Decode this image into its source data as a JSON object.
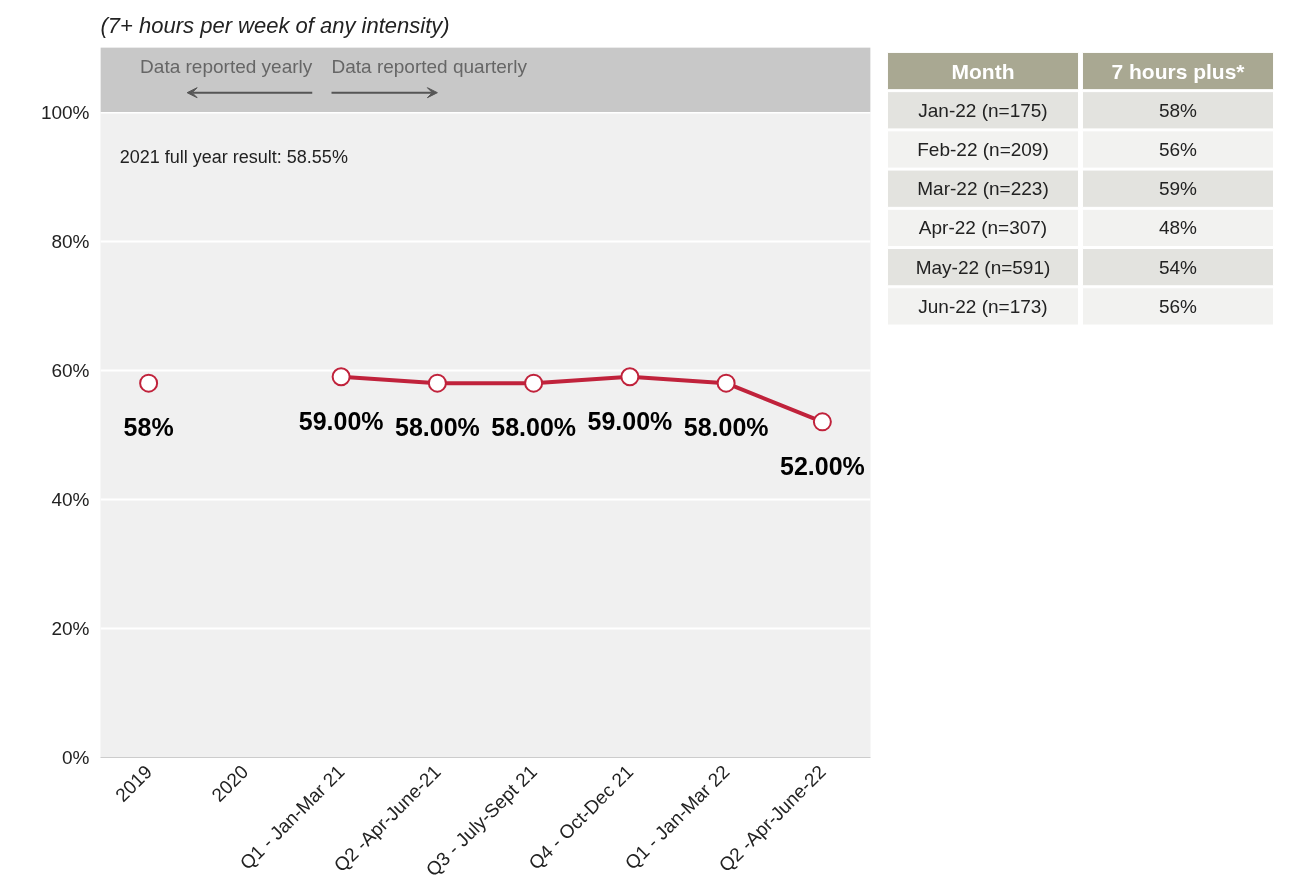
{
  "chart_data": [
    {
      "type": "line",
      "title": "(7+ hours per week of any intensity)",
      "categories": [
        "2019",
        "2020",
        "Q1 - Jan-Mar 21",
        "Q2 -Apr-June-21",
        "Q3 - July-Sept 21",
        "Q4 - Oct-Dec 21",
        "Q1 - Jan-Mar 22",
        "Q2 -Apr-June-22"
      ],
      "series": [
        {
          "color": "#c0223b",
          "values": [
            58,
            null,
            59,
            58,
            58,
            59,
            58,
            52
          ],
          "value_labels": [
            "58%",
            null,
            "59.00%",
            "58.00%",
            "58.00%",
            "59.00%",
            "58.00%",
            "52.00%"
          ]
        }
      ],
      "ylim": [
        0,
        110
      ],
      "yticks": [
        {
          "value": 0,
          "label": "0%"
        },
        {
          "value": 20,
          "label": "20%"
        },
        {
          "value": 40,
          "label": "40%"
        },
        {
          "value": 60,
          "label": "60%"
        },
        {
          "value": 80,
          "label": "80%"
        },
        {
          "value": 100,
          "label": "100%"
        }
      ],
      "grid": "y",
      "marker": "circle",
      "line_style": "solid",
      "bands": [
        {
          "axis": "y",
          "from": 100,
          "to": 110,
          "color": "#c8c8c8"
        }
      ],
      "annotations": [
        "2021 full year result: 58.55%",
        "Data reported yearly",
        "Data reported quarterly"
      ]
    },
    {
      "type": "other",
      "categories": [
        "Jan-22 (n=175)",
        "Feb-22 (n=209)",
        "Mar-22 (n=223)",
        "Apr-22 (n=307)",
        "May-22 (n=591)",
        "Jun-22 (n=173)"
      ],
      "value_labels": [
        "58%",
        "56%",
        "59%",
        "48%",
        "54%",
        "56%"
      ],
      "annotations": [
        "Month",
        "7 hours plus*"
      ]
    }
  ]
}
